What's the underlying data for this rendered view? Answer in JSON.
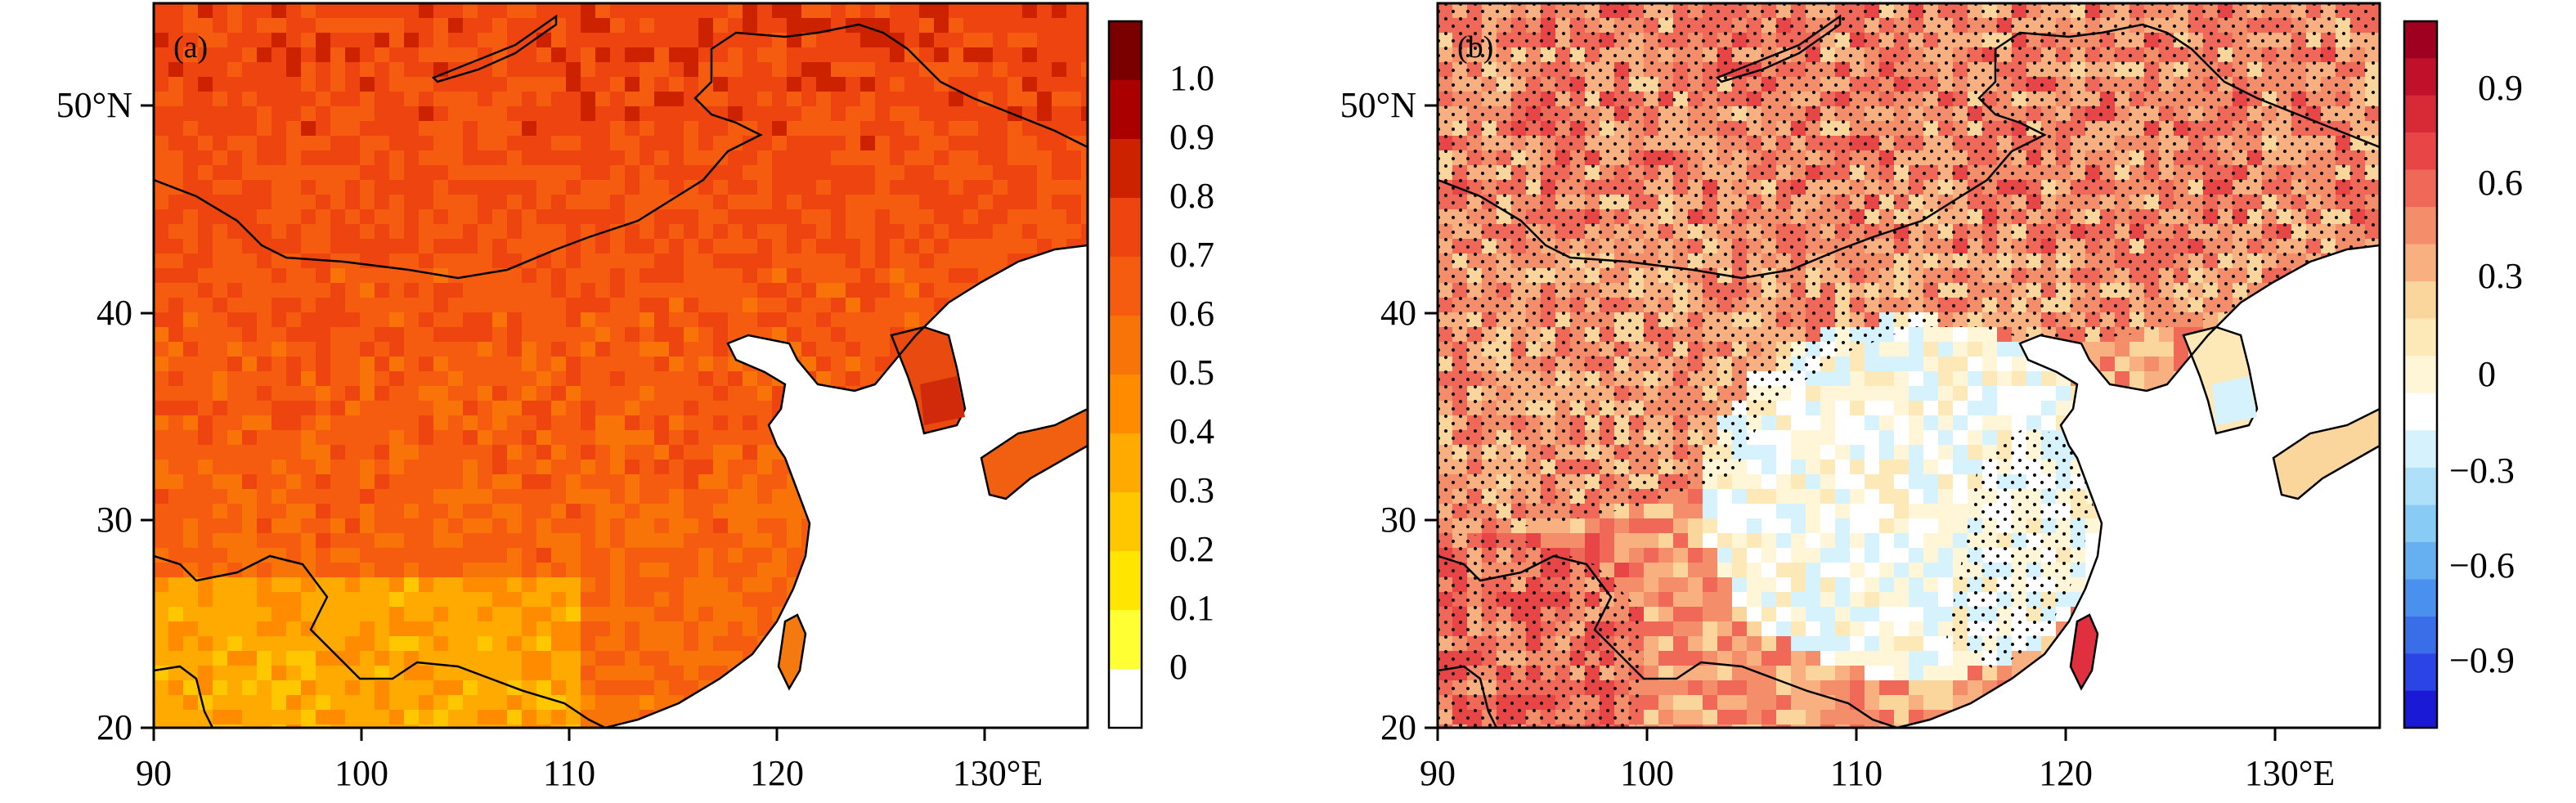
{
  "figure": {
    "panels": [
      {
        "label": "(a)",
        "field_level": 0.72,
        "lat_ticks": [
          "50°N",
          "40",
          "30",
          "20"
        ],
        "lon_ticks": [
          "90",
          "100",
          "110",
          "120",
          "130°E"
        ],
        "colorbar": {
          "tick_labels": [
            "1.0",
            "0.9",
            "0.8",
            "0.7",
            "0.6",
            "0.5",
            "0.4",
            "0.3",
            "0.2",
            "0.1",
            "0"
          ],
          "colors": [
            "#ffffff",
            "#ffff33",
            "#ffe500",
            "#ffc700",
            "#ffaa00",
            "#ff8c00",
            "#f87408",
            "#f55c10",
            "#ee4410",
            "#cc2200",
            "#aa0000",
            "#7a0000"
          ]
        }
      },
      {
        "label": "(b)",
        "stippled": true,
        "lat_ticks": [
          "50°N",
          "40",
          "30",
          "20"
        ],
        "lon_ticks": [
          "90",
          "100",
          "110",
          "120",
          "130°E"
        ],
        "colorbar": {
          "tick_labels": [
            "0.9",
            "0.6",
            "0.3",
            "0",
            "−0.3",
            "−0.6",
            "−0.9"
          ],
          "colors": [
            "#1a1ad6",
            "#2a44e6",
            "#3a6ee8",
            "#4a90ee",
            "#66b0f2",
            "#88ccf6",
            "#aee0fa",
            "#d6f2fc",
            "#ffffff",
            "#fff6d8",
            "#fde8b8",
            "#fbd69c",
            "#f8b080",
            "#f48e6a",
            "#f06858",
            "#e84646",
            "#d82a36",
            "#c0102a",
            "#a00020"
          ]
        }
      }
    ]
  }
}
